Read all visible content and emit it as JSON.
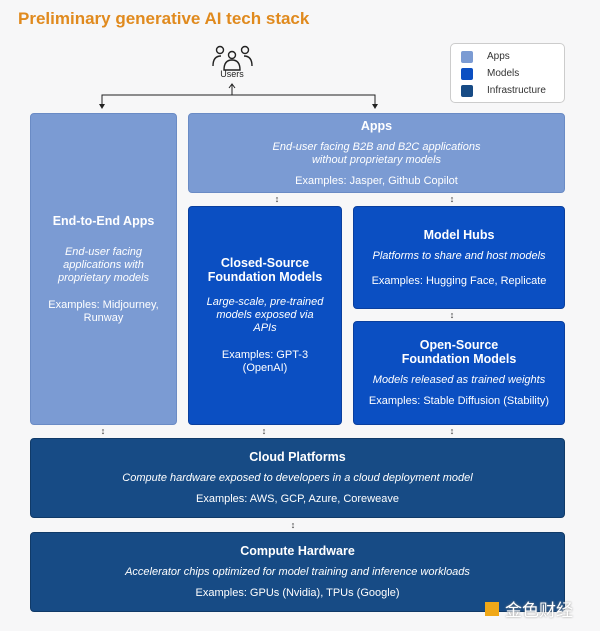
{
  "title": "Preliminary generative AI tech stack",
  "users_label": "Users",
  "colors": {
    "apps": "#7b9bd3",
    "models": "#0b4fc2",
    "infrastructure": "#174b85",
    "title": "#e08a1e"
  },
  "legend": [
    {
      "label": "Apps",
      "color": "#7b9bd3"
    },
    {
      "label": "Models",
      "color": "#0b4fc2"
    },
    {
      "label": "Infrastructure",
      "color": "#174b85"
    }
  ],
  "boxes": {
    "end_to_end": {
      "title": "End-to-End Apps",
      "desc": "End-user facing applications with proprietary models",
      "examples": "Examples: Midjourney, Runway"
    },
    "apps": {
      "title": "Apps",
      "desc": "End-user facing B2B and B2C applications without proprietary models",
      "examples": "Examples: Jasper, Github Copilot"
    },
    "closed": {
      "title": "Closed-Source Foundation Models",
      "desc": "Large-scale, pre-trained models exposed via APIs",
      "examples": "Examples: GPT-3 (OpenAI)"
    },
    "hubs": {
      "title": "Model Hubs",
      "desc": "Platforms to share and host models",
      "examples": "Examples: Hugging Face, Replicate"
    },
    "open": {
      "title": "Open-Source Foundation Models",
      "desc": "Models released as trained weights",
      "examples": "Examples: Stable Diffusion (Stability)"
    },
    "cloud": {
      "title": "Cloud Platforms",
      "desc": "Compute hardware exposed to developers in a cloud deployment model",
      "examples": "Examples: AWS, GCP, Azure, Coreweave"
    },
    "compute": {
      "title": "Compute Hardware",
      "desc": "Accelerator chips optimized for model training and inference workloads",
      "examples": "Examples: GPUs (Nvidia), TPUs (Google)"
    }
  },
  "watermark": "金色财经"
}
